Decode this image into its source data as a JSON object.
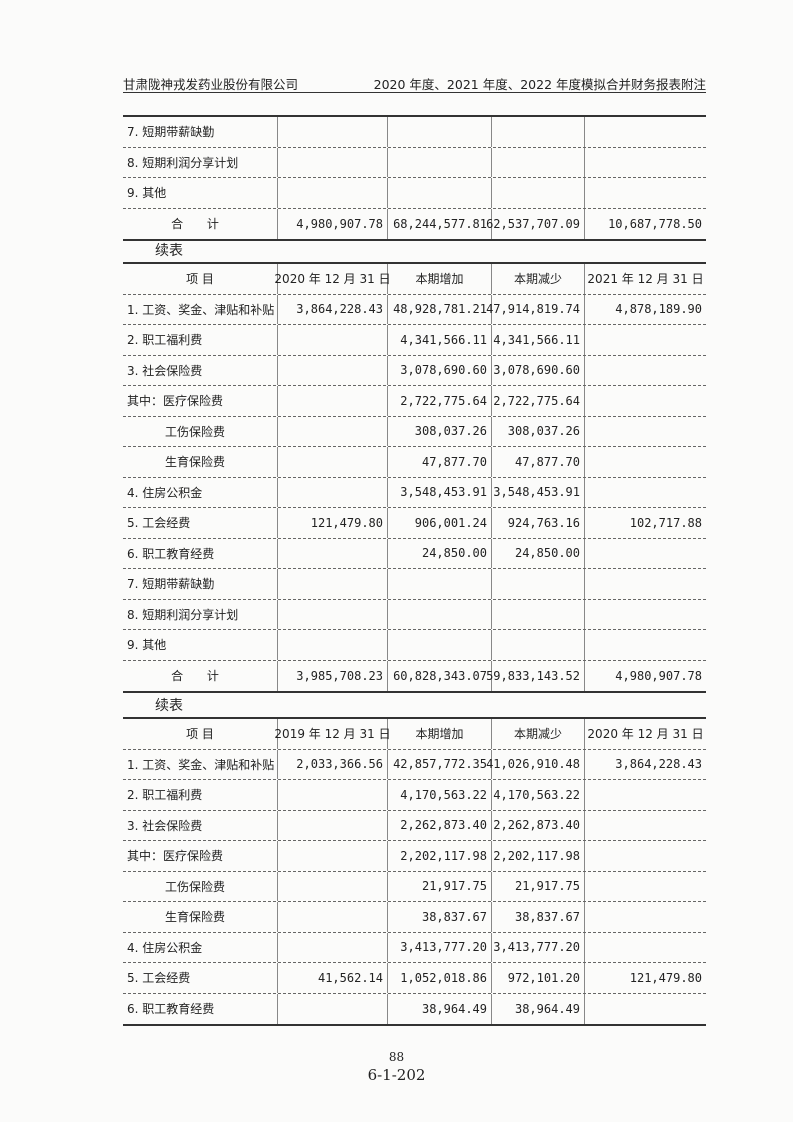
{
  "header": {
    "company": "甘肃陇神戎发药业股份有限公司",
    "title": "2020 年度、2021 年度、2022 年度模拟合并财务报表附注"
  },
  "continued_label": "续表",
  "tables": [
    {
      "header": null,
      "rows": [
        {
          "item": "7. 短期带薪缺勤",
          "values": [
            "",
            "",
            "",
            ""
          ]
        },
        {
          "item": "8. 短期利润分享计划",
          "values": [
            "",
            "",
            "",
            ""
          ]
        },
        {
          "item": "9. 其他",
          "values": [
            "",
            "",
            "",
            ""
          ]
        },
        {
          "item": "合 计",
          "total": true,
          "values": [
            "4,980,907.78",
            "68,244,577.81",
            "62,537,707.09",
            "10,687,778.50"
          ]
        }
      ]
    },
    {
      "header": [
        "项 目",
        "2020 年 12 月 31 日",
        "本期增加",
        "本期减少",
        "2021 年 12 月 31 日"
      ],
      "rows": [
        {
          "item": "1. 工资、奖金、津贴和补贴",
          "values": [
            "3,864,228.43",
            "48,928,781.21",
            "47,914,819.74",
            "4,878,189.90"
          ]
        },
        {
          "item": "2. 职工福利费",
          "values": [
            "",
            "4,341,566.11",
            "4,341,566.11",
            ""
          ]
        },
        {
          "item": "3. 社会保险费",
          "values": [
            "",
            "3,078,690.60",
            "3,078,690.60",
            ""
          ]
        },
        {
          "item": "其中：医疗保险费",
          "values": [
            "",
            "2,722,775.64",
            "2,722,775.64",
            ""
          ]
        },
        {
          "item": "工伤保险费",
          "indent": true,
          "values": [
            "",
            "308,037.26",
            "308,037.26",
            ""
          ]
        },
        {
          "item": "生育保险费",
          "indent": true,
          "values": [
            "",
            "47,877.70",
            "47,877.70",
            ""
          ]
        },
        {
          "item": "4. 住房公积金",
          "values": [
            "",
            "3,548,453.91",
            "3,548,453.91",
            ""
          ]
        },
        {
          "item": "5. 工会经费",
          "values": [
            "121,479.80",
            "906,001.24",
            "924,763.16",
            "102,717.88"
          ]
        },
        {
          "item": "6. 职工教育经费",
          "values": [
            "",
            "24,850.00",
            "24,850.00",
            ""
          ]
        },
        {
          "item": "7. 短期带薪缺勤",
          "values": [
            "",
            "",
            "",
            ""
          ]
        },
        {
          "item": "8. 短期利润分享计划",
          "values": [
            "",
            "",
            "",
            ""
          ]
        },
        {
          "item": "9. 其他",
          "values": [
            "",
            "",
            "",
            ""
          ]
        },
        {
          "item": "合 计",
          "total": true,
          "values": [
            "3,985,708.23",
            "60,828,343.07",
            "59,833,143.52",
            "4,980,907.78"
          ]
        }
      ]
    },
    {
      "header": [
        "项 目",
        "2019 年 12 月 31 日",
        "本期增加",
        "本期减少",
        "2020 年 12 月 31 日"
      ],
      "rows": [
        {
          "item": "1. 工资、奖金、津贴和补贴",
          "values": [
            "2,033,366.56",
            "42,857,772.35",
            "41,026,910.48",
            "3,864,228.43"
          ]
        },
        {
          "item": "2. 职工福利费",
          "values": [
            "",
            "4,170,563.22",
            "4,170,563.22",
            ""
          ]
        },
        {
          "item": "3. 社会保险费",
          "values": [
            "",
            "2,262,873.40",
            "2,262,873.40",
            ""
          ]
        },
        {
          "item": "其中：医疗保险费",
          "values": [
            "",
            "2,202,117.98",
            "2,202,117.98",
            ""
          ]
        },
        {
          "item": "工伤保险费",
          "indent": true,
          "values": [
            "",
            "21,917.75",
            "21,917.75",
            ""
          ]
        },
        {
          "item": "生育保险费",
          "indent": true,
          "values": [
            "",
            "38,837.67",
            "38,837.67",
            ""
          ]
        },
        {
          "item": "4. 住房公积金",
          "values": [
            "",
            "3,413,777.20",
            "3,413,777.20",
            ""
          ]
        },
        {
          "item": "5. 工会经费",
          "values": [
            "41,562.14",
            "1,052,018.86",
            "972,101.20",
            "121,479.80"
          ]
        },
        {
          "item": "6. 职工教育经费",
          "values": [
            "",
            "38,964.49",
            "38,964.49",
            ""
          ]
        }
      ]
    }
  ],
  "footer": {
    "page_number": "88",
    "doc_code": "6-1-202"
  }
}
